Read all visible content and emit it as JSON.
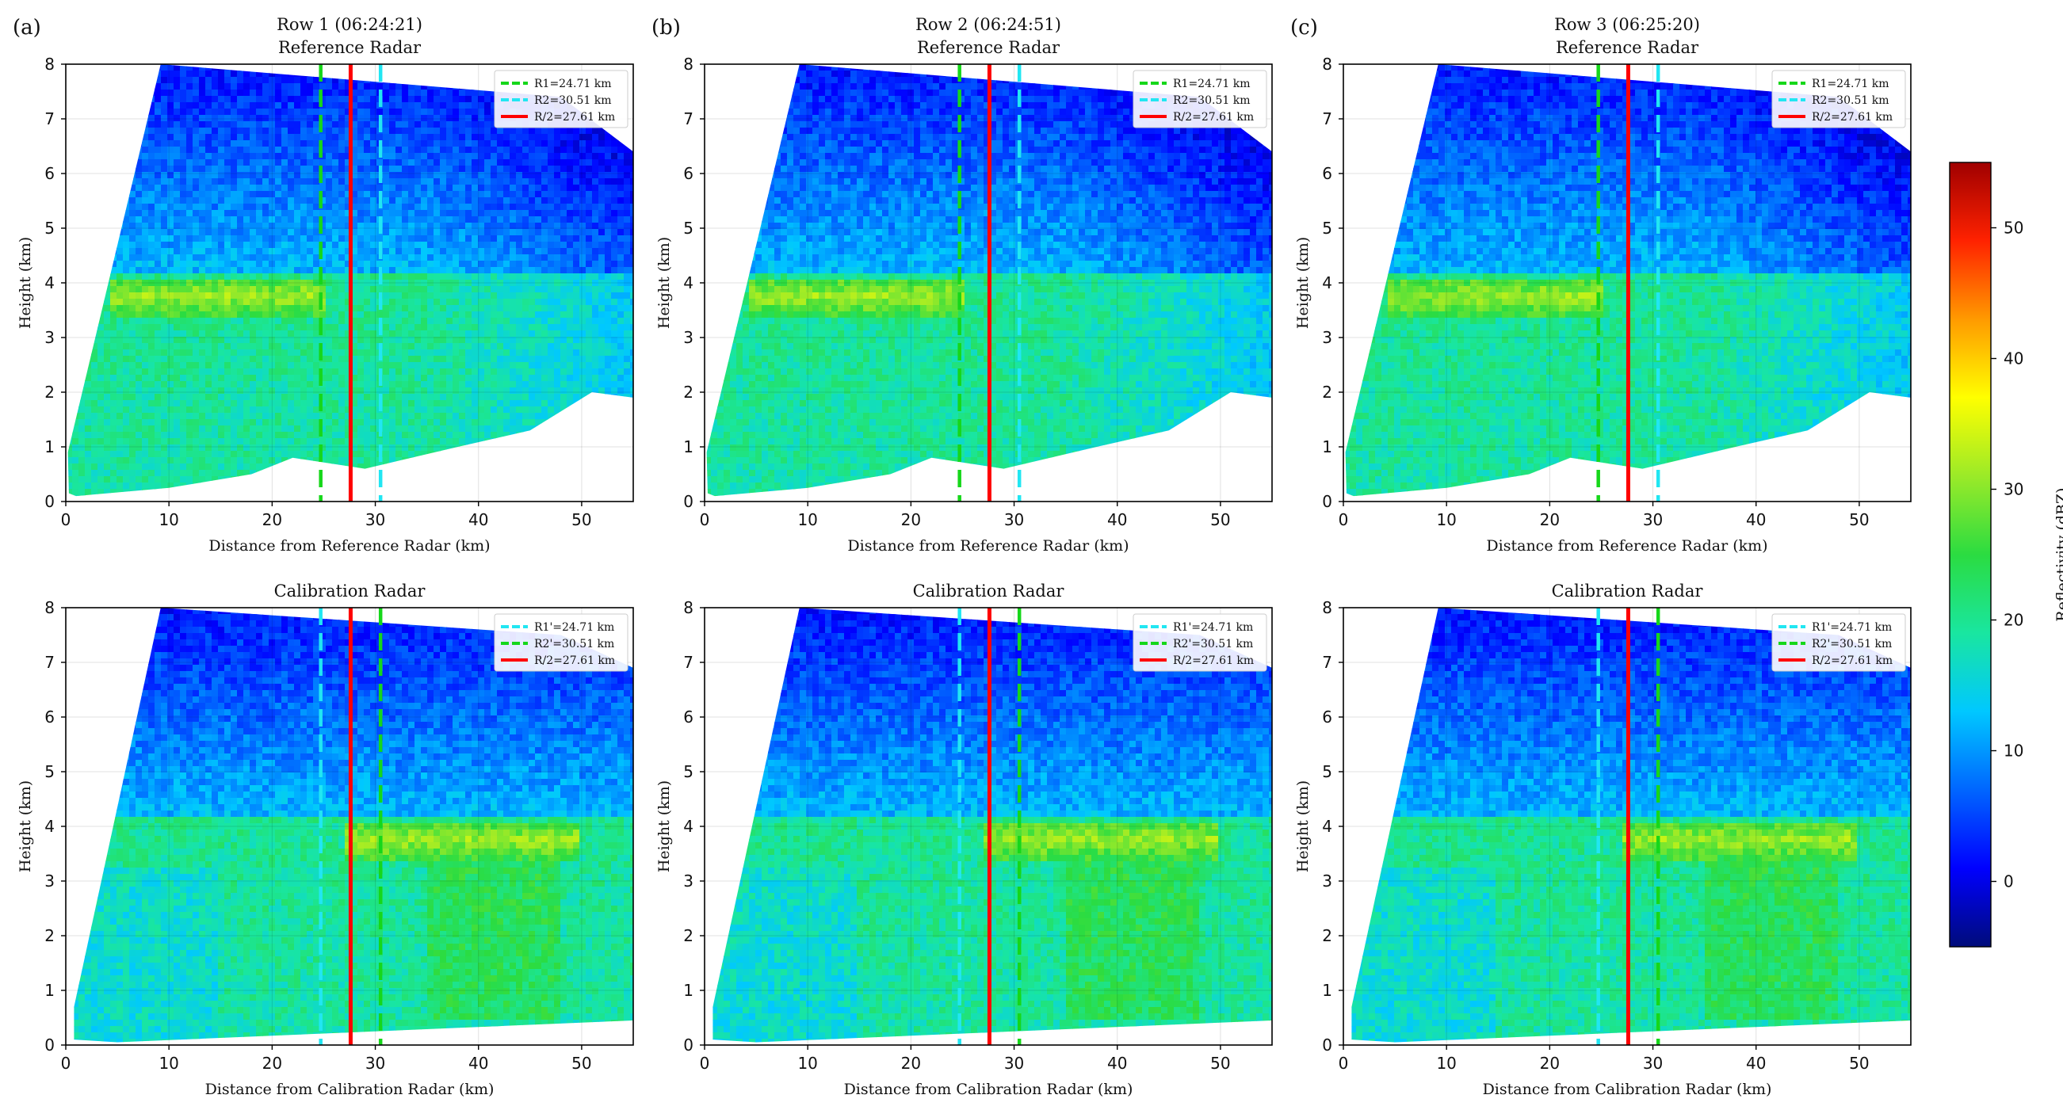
{
  "figure": {
    "colorbar": {
      "label": "Reflectivity (dBZ)",
      "min": -5,
      "max": 55,
      "ticks": [
        0,
        10,
        20,
        30,
        40,
        50
      ],
      "colors": [
        "#000c7a",
        "#0000ff",
        "#0066ff",
        "#00c8ff",
        "#19e6a0",
        "#2bdc41",
        "#9bea28",
        "#ffff00",
        "#ff9a00",
        "#ff2200",
        "#a00000"
      ]
    },
    "line_colors": {
      "green": "#16d71a",
      "cyan": "#21e6f2",
      "red": "#ff0000"
    }
  },
  "chart_data": [
    {
      "panel_label": "(a)",
      "type": "heatmap",
      "title": "Row 1 (06:24:21)",
      "subtitle": "Reference Radar",
      "xlabel": "Distance from Reference Radar (km)",
      "ylabel": "Height (km)",
      "xlim": [
        0,
        55
      ],
      "ylim": [
        0,
        8
      ],
      "xticks": [
        0,
        10,
        20,
        30,
        40,
        50
      ],
      "yticks": [
        0,
        1,
        2,
        3,
        4,
        5,
        6,
        7,
        8
      ],
      "bright_band": {
        "height_km": 3.75,
        "x_start_km": 4.5,
        "x_end_km": 25
      },
      "vlines": [
        {
          "label": "R1=24.71 km",
          "x": 24.71,
          "color": "green",
          "style": "dashed"
        },
        {
          "label": "R2=30.51 km",
          "x": 30.51,
          "color": "cyan",
          "style": "dashed"
        },
        {
          "label": "R/2=27.61 km",
          "x": 27.61,
          "color": "red",
          "style": "solid"
        }
      ]
    },
    {
      "panel_label": "(b)",
      "type": "heatmap",
      "title": "Row 2 (06:24:51)",
      "subtitle": "Reference Radar",
      "xlabel": "Distance from Reference Radar (km)",
      "ylabel": "Height (km)",
      "xlim": [
        0,
        55
      ],
      "ylim": [
        0,
        8
      ],
      "xticks": [
        0,
        10,
        20,
        30,
        40,
        50
      ],
      "yticks": [
        0,
        1,
        2,
        3,
        4,
        5,
        6,
        7,
        8
      ],
      "bright_band": {
        "height_km": 3.75,
        "x_start_km": 4.5,
        "x_end_km": 25
      },
      "vlines": [
        {
          "label": "R1=24.71 km",
          "x": 24.71,
          "color": "green",
          "style": "dashed"
        },
        {
          "label": "R2=30.51 km",
          "x": 30.51,
          "color": "cyan",
          "style": "dashed"
        },
        {
          "label": "R/2=27.61 km",
          "x": 27.61,
          "color": "red",
          "style": "solid"
        }
      ]
    },
    {
      "panel_label": "(c)",
      "type": "heatmap",
      "title": "Row 3 (06:25:20)",
      "subtitle": "Reference Radar",
      "xlabel": "Distance from Reference Radar (km)",
      "ylabel": "Height (km)",
      "xlim": [
        0,
        55
      ],
      "ylim": [
        0,
        8
      ],
      "xticks": [
        0,
        10,
        20,
        30,
        40,
        50
      ],
      "yticks": [
        0,
        1,
        2,
        3,
        4,
        5,
        6,
        7,
        8
      ],
      "bright_band": {
        "height_km": 3.75,
        "x_start_km": 4.5,
        "x_end_km": 25
      },
      "vlines": [
        {
          "label": "R1=24.71 km",
          "x": 24.71,
          "color": "green",
          "style": "dashed"
        },
        {
          "label": "R2=30.51 km",
          "x": 30.51,
          "color": "cyan",
          "style": "dashed"
        },
        {
          "label": "R/2=27.61 km",
          "x": 27.61,
          "color": "red",
          "style": "solid"
        }
      ]
    },
    {
      "panel_label": "",
      "type": "heatmap",
      "title": "Calibration Radar",
      "subtitle": "",
      "xlabel": "Distance from Calibration Radar (km)",
      "ylabel": "Height (km)",
      "xlim": [
        0,
        55
      ],
      "ylim": [
        0,
        8
      ],
      "xticks": [
        0,
        10,
        20,
        30,
        40,
        50
      ],
      "yticks": [
        0,
        1,
        2,
        3,
        4,
        5,
        6,
        7,
        8
      ],
      "bright_band": {
        "height_km": 3.75,
        "x_start_km": 27,
        "x_end_km": 50
      },
      "vlines": [
        {
          "label": "R1'=24.71 km",
          "x": 24.71,
          "color": "cyan",
          "style": "dashed"
        },
        {
          "label": "R2'=30.51 km",
          "x": 30.51,
          "color": "green",
          "style": "dashed"
        },
        {
          "label": "R/2=27.61 km",
          "x": 27.61,
          "color": "red",
          "style": "solid"
        }
      ]
    },
    {
      "panel_label": "",
      "type": "heatmap",
      "title": "Calibration Radar",
      "subtitle": "",
      "xlabel": "Distance from Calibration Radar (km)",
      "ylabel": "Height (km)",
      "xlim": [
        0,
        55
      ],
      "ylim": [
        0,
        8
      ],
      "xticks": [
        0,
        10,
        20,
        30,
        40,
        50
      ],
      "yticks": [
        0,
        1,
        2,
        3,
        4,
        5,
        6,
        7,
        8
      ],
      "bright_band": {
        "height_km": 3.75,
        "x_start_km": 27,
        "x_end_km": 50
      },
      "vlines": [
        {
          "label": "R1'=24.71 km",
          "x": 24.71,
          "color": "cyan",
          "style": "dashed"
        },
        {
          "label": "R2'=30.51 km",
          "x": 30.51,
          "color": "green",
          "style": "dashed"
        },
        {
          "label": "R/2=27.61 km",
          "x": 27.61,
          "color": "red",
          "style": "solid"
        }
      ]
    },
    {
      "panel_label": "",
      "type": "heatmap",
      "title": "Calibration Radar",
      "subtitle": "",
      "xlabel": "Distance from Calibration Radar (km)",
      "ylabel": "Height (km)",
      "xlim": [
        0,
        55
      ],
      "ylim": [
        0,
        8
      ],
      "xticks": [
        0,
        10,
        20,
        30,
        40,
        50
      ],
      "yticks": [
        0,
        1,
        2,
        3,
        4,
        5,
        6,
        7,
        8
      ],
      "bright_band": {
        "height_km": 3.75,
        "x_start_km": 27,
        "x_end_km": 50
      },
      "vlines": [
        {
          "label": "R1'=24.71 km",
          "x": 24.71,
          "color": "cyan",
          "style": "dashed"
        },
        {
          "label": "R2'=30.51 km",
          "x": 30.51,
          "color": "green",
          "style": "dashed"
        },
        {
          "label": "R/2=27.61 km",
          "x": 27.61,
          "color": "red",
          "style": "solid"
        }
      ]
    }
  ]
}
